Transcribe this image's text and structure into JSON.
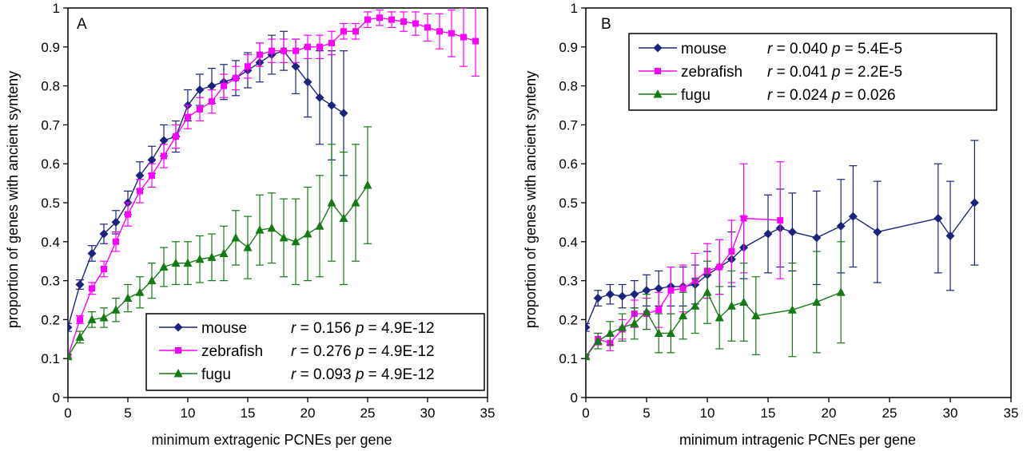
{
  "chart_data": [
    {
      "type": "line",
      "panel_label": "A",
      "xlabel": "minimum extragenic PCNEs per gene",
      "ylabel": "proportion of genes with ancient synteny",
      "xlim": [
        0,
        35
      ],
      "ylim": [
        0,
        1
      ],
      "x_ticks": [
        0,
        5,
        10,
        15,
        20,
        25,
        30,
        35
      ],
      "y_ticks": [
        0,
        0.1,
        0.2,
        0.3,
        0.4,
        0.5,
        0.6,
        0.7,
        0.8,
        0.9,
        1
      ],
      "legend_position": "bottom-right",
      "series": [
        {
          "name": "mouse",
          "color": "#1a237e",
          "marker": "diamond",
          "stats": {
            "r": "r",
            "r_text": " = 0.156 ",
            "p": "p",
            "p_text": " = 4.9E-12"
          },
          "x": [
            0,
            1,
            2,
            3,
            4,
            5,
            6,
            7,
            8,
            9,
            10,
            11,
            12,
            13,
            14,
            15,
            16,
            17,
            18,
            19,
            20,
            21,
            22,
            23
          ],
          "y": [
            0.18,
            0.29,
            0.37,
            0.42,
            0.45,
            0.5,
            0.57,
            0.61,
            0.66,
            0.67,
            0.75,
            0.79,
            0.8,
            0.81,
            0.82,
            0.84,
            0.86,
            0.88,
            0.89,
            0.85,
            0.81,
            0.77,
            0.75,
            0.73
          ],
          "err": [
            0.01,
            0.012,
            0.02,
            0.025,
            0.03,
            0.03,
            0.035,
            0.035,
            0.04,
            0.04,
            0.04,
            0.04,
            0.045,
            0.045,
            0.045,
            0.045,
            0.05,
            0.05,
            0.05,
            0.07,
            0.09,
            0.12,
            0.14,
            0.16
          ]
        },
        {
          "name": "zebrafish",
          "color": "#ff00ff",
          "marker": "square",
          "stats": {
            "r": "r",
            "r_text": " = 0.276 ",
            "p": "p",
            "p_text": " = 4.9E-12"
          },
          "x": [
            0,
            1,
            2,
            3,
            4,
            5,
            6,
            7,
            8,
            9,
            10,
            11,
            12,
            13,
            14,
            15,
            16,
            17,
            18,
            19,
            20,
            21,
            22,
            23,
            24,
            25,
            26,
            27,
            28,
            29,
            30,
            31,
            32,
            33,
            34
          ],
          "y": [
            0.105,
            0.2,
            0.28,
            0.33,
            0.4,
            0.47,
            0.53,
            0.57,
            0.62,
            0.67,
            0.72,
            0.74,
            0.76,
            0.8,
            0.82,
            0.85,
            0.88,
            0.89,
            0.89,
            0.89,
            0.9,
            0.9,
            0.91,
            0.94,
            0.94,
            0.97,
            0.975,
            0.97,
            0.965,
            0.96,
            0.95,
            0.94,
            0.935,
            0.925,
            0.915
          ],
          "err": [
            0.005,
            0.01,
            0.015,
            0.02,
            0.025,
            0.03,
            0.03,
            0.03,
            0.03,
            0.03,
            0.03,
            0.03,
            0.03,
            0.03,
            0.03,
            0.03,
            0.03,
            0.03,
            0.03,
            0.03,
            0.03,
            0.03,
            0.03,
            0.02,
            0.02,
            0.02,
            0.02,
            0.02,
            0.025,
            0.03,
            0.035,
            0.045,
            0.06,
            0.075,
            0.09
          ]
        },
        {
          "name": "fugu",
          "color": "#157a15",
          "marker": "triangle",
          "stats": {
            "r": "r",
            "r_text": " = 0.093 ",
            "p": "p",
            "p_text": " = 4.9E-12"
          },
          "x": [
            0,
            1,
            2,
            3,
            4,
            5,
            6,
            7,
            8,
            9,
            10,
            11,
            12,
            13,
            14,
            15,
            16,
            17,
            18,
            19,
            20,
            21,
            22,
            23,
            24,
            25
          ],
          "y": [
            0.105,
            0.155,
            0.2,
            0.205,
            0.225,
            0.255,
            0.27,
            0.3,
            0.335,
            0.345,
            0.345,
            0.355,
            0.36,
            0.37,
            0.41,
            0.385,
            0.43,
            0.435,
            0.41,
            0.4,
            0.42,
            0.44,
            0.5,
            0.46,
            0.5,
            0.545
          ],
          "err": [
            0.005,
            0.015,
            0.02,
            0.025,
            0.03,
            0.035,
            0.04,
            0.045,
            0.05,
            0.055,
            0.055,
            0.06,
            0.06,
            0.07,
            0.07,
            0.08,
            0.09,
            0.09,
            0.1,
            0.11,
            0.12,
            0.13,
            0.15,
            0.17,
            0.15,
            0.15
          ]
        }
      ]
    },
    {
      "type": "line",
      "panel_label": "B",
      "xlabel": "minimum intragenic PCNEs per gene",
      "ylabel": "proportion of genes with ancient synteny",
      "xlim": [
        0,
        35
      ],
      "ylim": [
        0,
        1
      ],
      "x_ticks": [
        0,
        5,
        10,
        15,
        20,
        25,
        30,
        35
      ],
      "y_ticks": [
        0,
        0.1,
        0.2,
        0.3,
        0.4,
        0.5,
        0.6,
        0.7,
        0.8,
        0.9,
        1
      ],
      "legend_position": "top-left",
      "series": [
        {
          "name": "mouse",
          "color": "#1a237e",
          "marker": "diamond",
          "stats": {
            "r": "r",
            "r_text": " = 0.040 ",
            "p": "p",
            "p_text": " = 5.4E-5"
          },
          "x": [
            0,
            1,
            2,
            3,
            4,
            5,
            6,
            7,
            8,
            9,
            10,
            11,
            12,
            13,
            15,
            16,
            17,
            19,
            21,
            22,
            24,
            29,
            30,
            32
          ],
          "y": [
            0.18,
            0.255,
            0.265,
            0.26,
            0.265,
            0.275,
            0.28,
            0.285,
            0.285,
            0.29,
            0.315,
            0.335,
            0.355,
            0.385,
            0.42,
            0.435,
            0.425,
            0.41,
            0.44,
            0.465,
            0.425,
            0.46,
            0.415,
            0.5
          ],
          "err": [
            0.01,
            0.02,
            0.025,
            0.03,
            0.035,
            0.04,
            0.045,
            0.05,
            0.05,
            0.05,
            0.06,
            0.07,
            0.07,
            0.08,
            0.1,
            0.1,
            0.1,
            0.12,
            0.12,
            0.13,
            0.13,
            0.14,
            0.14,
            0.16
          ]
        },
        {
          "name": "zebrafish",
          "color": "#ff00ff",
          "marker": "square",
          "stats": {
            "r": "r",
            "r_text": " = 0.041 ",
            "p": "p",
            "p_text": " = 2.2E-5"
          },
          "x": [
            0,
            1,
            2,
            3,
            4,
            5,
            6,
            7,
            8,
            9,
            10,
            11,
            12,
            13,
            16
          ],
          "y": [
            0.105,
            0.15,
            0.14,
            0.175,
            0.215,
            0.215,
            0.225,
            0.275,
            0.28,
            0.3,
            0.325,
            0.335,
            0.375,
            0.46,
            0.455
          ],
          "err": [
            0.005,
            0.015,
            0.02,
            0.025,
            0.035,
            0.04,
            0.045,
            0.06,
            0.06,
            0.07,
            0.07,
            0.07,
            0.08,
            0.14,
            0.15
          ]
        },
        {
          "name": "fugu",
          "color": "#157a15",
          "marker": "triangle",
          "stats": {
            "r": "r",
            "r_text": " = 0.024 ",
            "p": "p",
            "p_text": " = 0.026"
          },
          "x": [
            0,
            1,
            2,
            3,
            4,
            5,
            6,
            7,
            8,
            9,
            10,
            11,
            12,
            13,
            14,
            17,
            19,
            21
          ],
          "y": [
            0.105,
            0.145,
            0.165,
            0.18,
            0.19,
            0.22,
            0.165,
            0.165,
            0.21,
            0.235,
            0.27,
            0.205,
            0.235,
            0.245,
            0.21,
            0.225,
            0.245,
            0.27
          ],
          "err": [
            0.005,
            0.02,
            0.03,
            0.035,
            0.04,
            0.045,
            0.05,
            0.05,
            0.06,
            0.07,
            0.08,
            0.08,
            0.09,
            0.1,
            0.1,
            0.12,
            0.13,
            0.13
          ]
        }
      ]
    }
  ]
}
